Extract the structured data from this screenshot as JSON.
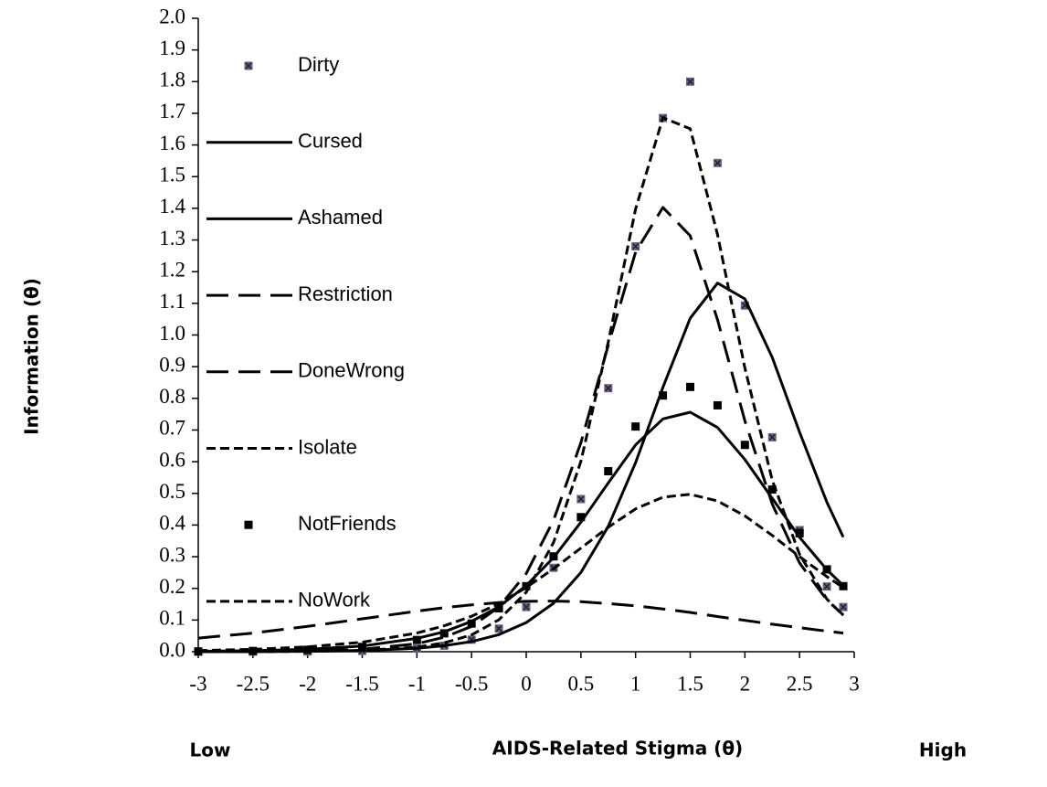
{
  "chart_data": {
    "type": "line",
    "x_label": "AIDS-Related Stigma (θ)",
    "y_label": "Information (θ)",
    "annotations": [
      "Low",
      "High"
    ],
    "x": [
      -3,
      -2.5,
      -2,
      -1.5,
      -1,
      -0.75,
      -0.5,
      -0.25,
      0,
      0.25,
      0.5,
      0.75,
      1,
      1.25,
      1.5,
      1.75,
      2,
      2.25,
      2.5,
      2.75,
      2.9
    ],
    "xlim": [
      -3,
      3
    ],
    "xticks": [
      -3,
      -2.5,
      -2,
      -1.5,
      -1,
      -0.5,
      0,
      0.5,
      1,
      1.5,
      2,
      2.5,
      3
    ],
    "ylim": [
      0,
      2
    ],
    "yticks": [
      {
        "value": 0,
        "label": "0.0"
      },
      0.1,
      0.2,
      0.3,
      0.4,
      0.5,
      0.6,
      0.7,
      0.8,
      0.9,
      {
        "value": 1,
        "label": "1.0"
      },
      1.1,
      1.2,
      1.3,
      1.4,
      1.5,
      1.6,
      1.7,
      1.8,
      1.9,
      {
        "value": 2,
        "label": "2.0"
      }
    ],
    "grid": false,
    "legend": "left",
    "series": [
      {
        "name": "Dirty",
        "color": "#6e5f86",
        "style": "marker-x",
        "values": [
          0.0,
          0.0002,
          0.0007,
          0.0026,
          0.0099,
          0.019,
          0.038,
          0.073,
          0.141,
          0.265,
          0.482,
          0.832,
          1.28,
          1.685,
          1.8,
          1.543,
          1.093,
          0.677,
          0.384,
          0.206,
          0.141
        ]
      },
      {
        "name": "Cursed",
        "color": "#000000",
        "style": "solid",
        "values": [
          0.0001,
          0.0004,
          0.0013,
          0.0037,
          0.011,
          0.019,
          0.032,
          0.054,
          0.092,
          0.153,
          0.25,
          0.396,
          0.597,
          0.835,
          1.053,
          1.164,
          1.114,
          0.929,
          0.693,
          0.472,
          0.362
        ]
      },
      {
        "name": "Ashamed",
        "color": "#000000",
        "style": "solid",
        "values": [
          0.0013,
          0.0031,
          0.0075,
          0.018,
          0.042,
          0.063,
          0.096,
          0.142,
          0.209,
          0.297,
          0.409,
          0.533,
          0.653,
          0.735,
          0.756,
          0.708,
          0.607,
          0.484,
          0.361,
          0.259,
          0.209
        ]
      },
      {
        "name": "Restriction",
        "color": "#000000",
        "style": "long-dash",
        "values": [
          0.0002,
          0.0007,
          0.0024,
          0.0077,
          0.025,
          0.046,
          0.08,
          0.141,
          0.247,
          0.415,
          0.66,
          0.968,
          1.262,
          1.403,
          1.313,
          1.048,
          0.729,
          0.466,
          0.28,
          0.163,
          0.116
        ]
      },
      {
        "name": "DoneWrong",
        "color": "#000000",
        "style": "long-dash",
        "values": [
          0.043,
          0.059,
          0.08,
          0.104,
          0.128,
          0.139,
          0.148,
          0.155,
          0.159,
          0.16,
          0.158,
          0.152,
          0.145,
          0.135,
          0.124,
          0.111,
          0.099,
          0.087,
          0.076,
          0.065,
          0.059
        ]
      },
      {
        "name": "Isolate",
        "color": "#000000",
        "style": "short-dash",
        "values": [
          0.0001,
          0.0003,
          0.0011,
          0.0039,
          0.0145,
          0.028,
          0.053,
          0.101,
          0.188,
          0.345,
          0.601,
          0.978,
          1.398,
          1.686,
          1.651,
          1.317,
          0.896,
          0.541,
          0.307,
          0.166,
          0.115
        ]
      },
      {
        "name": "NotFriends",
        "color": "#000000",
        "style": "marker-square",
        "values": [
          0.001,
          0.0024,
          0.006,
          0.015,
          0.037,
          0.058,
          0.089,
          0.137,
          0.207,
          0.301,
          0.425,
          0.57,
          0.711,
          0.809,
          0.836,
          0.778,
          0.653,
          0.512,
          0.374,
          0.26,
          0.207
        ]
      },
      {
        "name": "NoWork",
        "color": "#000000",
        "style": "short-dash",
        "values": [
          0.0038,
          0.0076,
          0.0153,
          0.03,
          0.059,
          0.082,
          0.112,
          0.152,
          0.203,
          0.262,
          0.327,
          0.393,
          0.451,
          0.488,
          0.497,
          0.476,
          0.429,
          0.367,
          0.3,
          0.237,
          0.203
        ]
      }
    ]
  }
}
